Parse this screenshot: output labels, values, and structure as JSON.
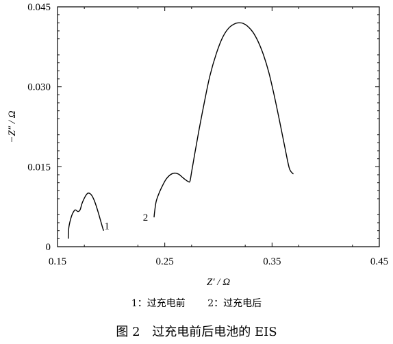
{
  "chart_data": {
    "type": "line",
    "xlabel": "Z′ / Ω",
    "ylabel": "−Z″ / Ω",
    "xlim": [
      0.15,
      0.45
    ],
    "ylim": [
      0,
      0.045
    ],
    "x_ticks": [
      0.15,
      0.25,
      0.35,
      0.45
    ],
    "x_tick_labels": [
      "0.15",
      "0.25",
      "0.35",
      "0.45"
    ],
    "y_ticks": [
      0,
      0.015,
      0.03,
      0.045
    ],
    "y_tick_labels": [
      "0",
      "0.015",
      "0.030",
      "0.045"
    ],
    "series": [
      {
        "name": "1",
        "x": [
          0.16,
          0.1605,
          0.162,
          0.164,
          0.1665,
          0.169,
          0.171,
          0.173,
          0.1755,
          0.178,
          0.18,
          0.182,
          0.184,
          0.186,
          0.188,
          0.19,
          0.192,
          0.193
        ],
        "y": [
          0.0015,
          0.0035,
          0.005,
          0.0062,
          0.0069,
          0.0066,
          0.0069,
          0.0082,
          0.0093,
          0.01,
          0.01,
          0.0096,
          0.0088,
          0.0077,
          0.0064,
          0.005,
          0.0036,
          0.003
        ]
      },
      {
        "name": "2",
        "x": [
          0.24,
          0.2405,
          0.242,
          0.245,
          0.248,
          0.251,
          0.254,
          0.257,
          0.26,
          0.263,
          0.266,
          0.269,
          0.272,
          0.2735,
          0.275,
          0.278,
          0.282,
          0.287,
          0.292,
          0.298,
          0.304,
          0.31,
          0.316,
          0.32,
          0.323,
          0.327,
          0.332,
          0.337,
          0.342,
          0.347,
          0.352,
          0.357,
          0.362,
          0.366,
          0.369,
          0.37
        ],
        "y": [
          0.0055,
          0.0065,
          0.0085,
          0.0102,
          0.0115,
          0.0126,
          0.0133,
          0.0137,
          0.0138,
          0.0136,
          0.0131,
          0.0126,
          0.0122,
          0.0123,
          0.014,
          0.0175,
          0.022,
          0.0272,
          0.032,
          0.0362,
          0.0393,
          0.0411,
          0.0419,
          0.042,
          0.0419,
          0.0414,
          0.0403,
          0.0385,
          0.036,
          0.0327,
          0.0284,
          0.0236,
          0.0186,
          0.0148,
          0.0138,
          0.0137
        ]
      }
    ],
    "annotations": [
      {
        "text": "1",
        "x": 0.196,
        "y": 0.0033
      },
      {
        "text": "2",
        "x": 0.232,
        "y": 0.0049
      }
    ],
    "grid": false
  },
  "legend_text": {
    "item1": "1：过充电前",
    "item2": "2：过充电后"
  },
  "caption": {
    "figure_label": "图 2",
    "title": "过充电前后电池的 EIS"
  }
}
